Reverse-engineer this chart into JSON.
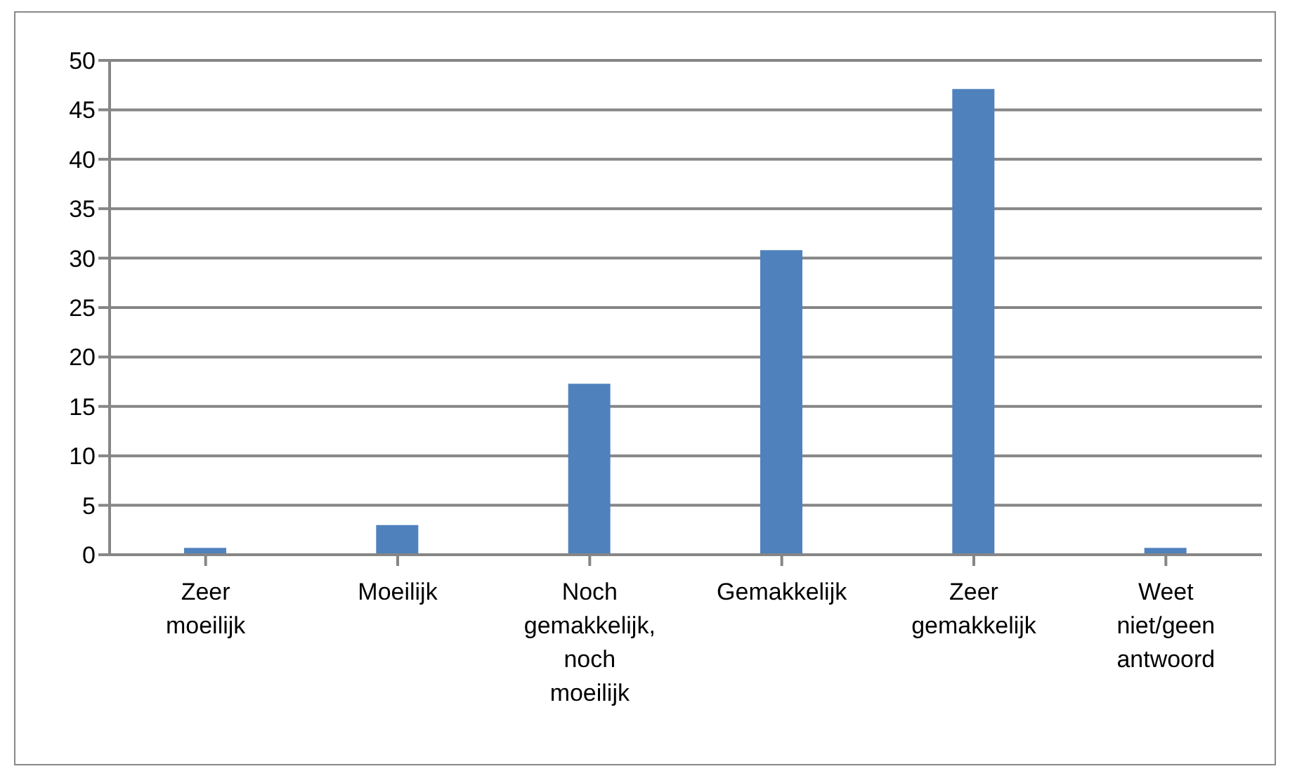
{
  "chart_data": {
    "type": "bar",
    "categories": [
      "Zeer moeilijk",
      "Moeilijk",
      "Noch gemakkelijk, noch moeilijk",
      "Gemakkelijk",
      "Zeer gemakkelijk",
      "Weet niet/geen antwoord"
    ],
    "values": [
      0.7,
      3.0,
      17.3,
      30.8,
      47.1,
      0.7
    ],
    "color": "#4f81bd",
    "ylim": [
      0,
      50
    ],
    "yticks": [
      0,
      5,
      10,
      15,
      20,
      25,
      30,
      35,
      40,
      45,
      50
    ],
    "grid": "y",
    "legend": false
  }
}
